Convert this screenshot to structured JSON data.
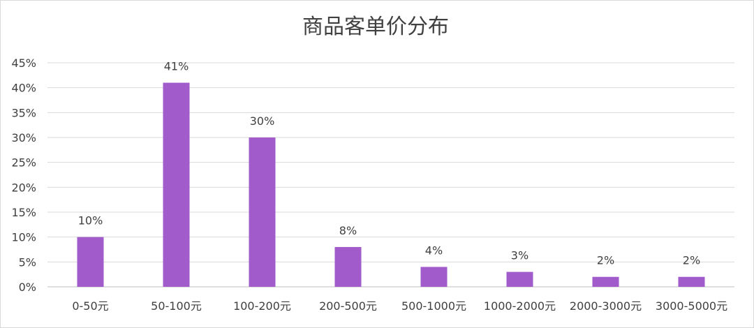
{
  "chart_data": {
    "type": "bar",
    "title": "商品客单价分布",
    "xlabel": "",
    "ylabel": "",
    "categories": [
      "0-50元",
      "50-100元",
      "100-200元",
      "200-500元",
      "500-1000元",
      "1000-2000元",
      "2000-3000元",
      "3000-5000元"
    ],
    "values": [
      10,
      41,
      30,
      8,
      4,
      3,
      2,
      2
    ],
    "data_labels": [
      "10%",
      "41%",
      "30%",
      "8%",
      "4%",
      "3%",
      "2%",
      "2%"
    ],
    "y_ticks": [
      "0%",
      "5%",
      "10%",
      "15%",
      "20%",
      "25%",
      "30%",
      "35%",
      "40%",
      "45%"
    ],
    "ylim": [
      0,
      45
    ],
    "grid": true,
    "legend": "none",
    "bar_color": "#a25bcb"
  }
}
